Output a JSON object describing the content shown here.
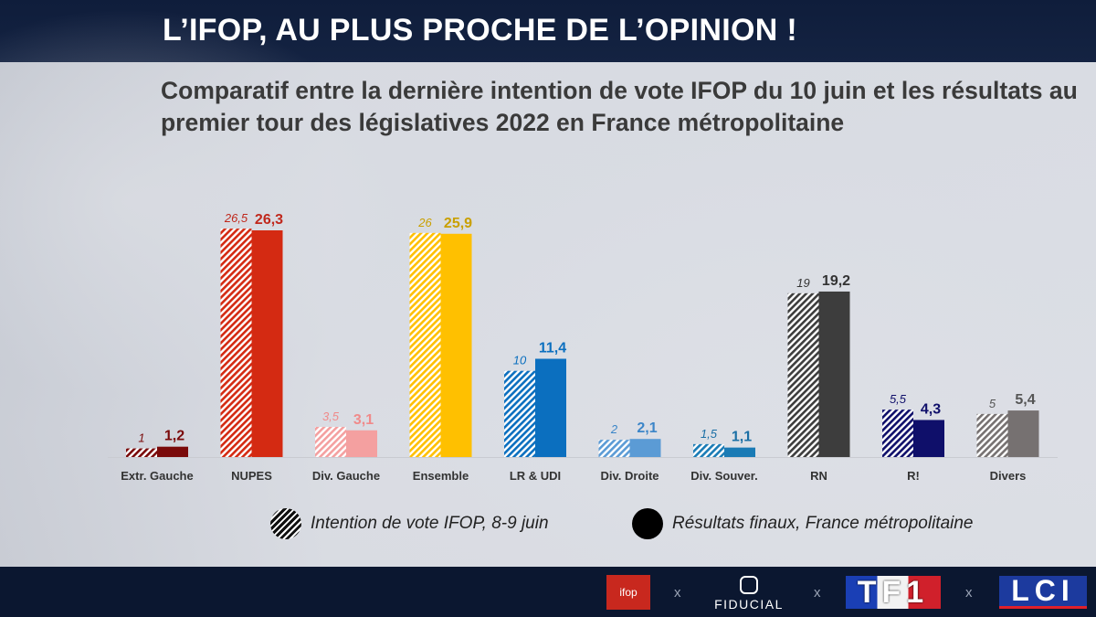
{
  "header": {
    "title": "L’IFOP, AU PLUS PROCHE DE L’OPINION !",
    "subtitle": "Comparatif entre la dernière intention de vote IFOP du 10 juin et les résultats au premier tour des législatives 2022 en France métropolitaine"
  },
  "chart_data": {
    "type": "bar",
    "title": "Comparatif entre la dernière intention de vote IFOP du 10 juin et les résultats au premier tour des législatives 2022 en France métropolitaine",
    "xlabel": "",
    "ylabel": "",
    "ylim": [
      0,
      28
    ],
    "grid": false,
    "legend_position": "bottom",
    "categories": [
      "Extr. Gauche",
      "NUPES",
      "Div. Gauche",
      "Ensemble",
      "LR & UDI",
      "Div. Droite",
      "Div. Souver.",
      "RN",
      "R!",
      "Divers"
    ],
    "series": [
      {
        "name": "Intention de vote IFOP, 8-9 juin",
        "pattern": "hatched",
        "values": [
          1,
          26.5,
          3.5,
          26,
          10,
          2,
          1.5,
          19,
          5.5,
          5
        ],
        "labels": [
          "1",
          "26,5",
          "3,5",
          "26",
          "10",
          "2",
          "1,5",
          "19",
          "5,5",
          "5"
        ]
      },
      {
        "name": "Résultats finaux, France métropolitaine",
        "pattern": "solid",
        "values": [
          1.2,
          26.3,
          3.1,
          25.9,
          11.4,
          2.1,
          1.1,
          19.2,
          4.3,
          5.4
        ],
        "labels": [
          "1,2",
          "26,3",
          "3,1",
          "25,9",
          "11,4",
          "2,1",
          "1,1",
          "19,2",
          "4,3",
          "5,4"
        ]
      }
    ],
    "colors": [
      "#7a0a0a",
      "#d42a12",
      "#f4a0a0",
      "#ffc000",
      "#0b6fbf",
      "#5b9bd5",
      "#1a7bb5",
      "#3d3d3d",
      "#0f0f6a",
      "#767171"
    ],
    "label_colors": [
      "#7a0a0a",
      "#c0281c",
      "#f08a8a",
      "#c9a000",
      "#0b6fbf",
      "#3c85c8",
      "#1a6fa5",
      "#333333",
      "#0f0f6a",
      "#555555"
    ]
  },
  "legend": {
    "ifop_label": "Intention de vote IFOP, 8-9 juin",
    "final_label": "Résultats finaux, France métropolitaine"
  },
  "footer": {
    "ifop_logo": "ifop",
    "fiducial_logo": "FIDUCIAL",
    "tf1_logo": "TF1",
    "lci_logo": "LCI",
    "separator": "x"
  }
}
